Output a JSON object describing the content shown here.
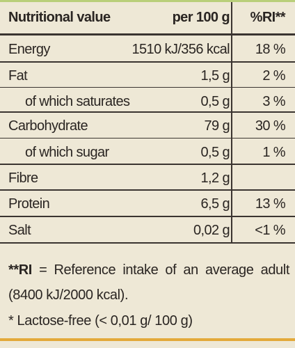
{
  "table": {
    "header": [
      "Nutritional value",
      "per 100 g",
      "%RI**"
    ],
    "rows": [
      [
        "Energy",
        "1510 kJ/356 kcal",
        "18 %"
      ],
      [
        "Fat",
        "1,5 g",
        "2 %"
      ],
      [
        "of which saturates",
        "0,5 g",
        "3 %"
      ],
      [
        "Carbohydrate",
        "79 g",
        "30 %"
      ],
      [
        "of which sugar",
        "0,5 g",
        "1 %"
      ],
      [
        "Fibre",
        "1,2 g"
      ],
      [
        "Protein",
        "6,5 g",
        "13 %"
      ],
      [
        "Salt",
        "0,02 g",
        "<1 %"
      ]
    ]
  },
  "footnotes": {
    "ri_term": "**RI",
    "ri_text": "= Reference intake of an average adult (8400 kJ/2000 kcal).",
    "lactose": "* Lactose-free (< 0,01 g/ 100 g)"
  }
}
